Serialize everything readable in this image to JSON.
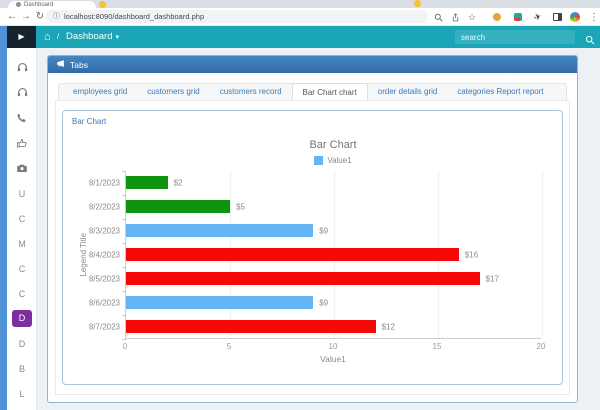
{
  "colors": {
    "navbar_teal": "#1aa6b7",
    "navbar_dark_box": "#15232e",
    "left_stripe_blue": "#4f93d6",
    "panel_header_blue": "#3b76b5",
    "panel_border_blue": "#8fb4da",
    "link_blue": "#3a79b8",
    "active_badge_purple": "#7d2ea0",
    "bar_green": "#0d930d",
    "bar_blue": "#64b5f6",
    "bar_red": "#f40808"
  },
  "browser": {
    "tab_title": "Dashboard",
    "url": "localhost:8090/dashboard_dashboard.php",
    "back_glyph": "←",
    "forward_glyph": "→",
    "reload_glyph": "↻",
    "info_glyph": "ⓘ",
    "star_glyph": "☆",
    "plane_glyph": "✈",
    "menu_glyph": "⋮"
  },
  "navbar": {
    "toggle_glyph": "▶",
    "home_glyph": "⌂",
    "breadcrumb_sep": "/",
    "menu_label": "Dashboard",
    "caret_glyph": "▾",
    "search_placeholder": "search"
  },
  "sidebar": {
    "items": [
      {
        "icon": "headset"
      },
      {
        "icon": "headset"
      },
      {
        "icon": "phone"
      },
      {
        "icon": "thumbs-up"
      },
      {
        "icon": "camera"
      },
      {
        "letter": "U"
      },
      {
        "letter": "C"
      },
      {
        "letter": "M"
      },
      {
        "letter": "C"
      },
      {
        "letter": "C"
      },
      {
        "letter": "D",
        "active": true
      },
      {
        "letter": "D"
      },
      {
        "letter": "B"
      },
      {
        "letter": "L"
      }
    ]
  },
  "panel": {
    "title": "Tabs"
  },
  "tabs": {
    "items": [
      {
        "label": "employees grid"
      },
      {
        "label": "customers grid"
      },
      {
        "label": "customers record"
      },
      {
        "label": "Bar Chart chart",
        "active": true
      },
      {
        "label": "order details grid"
      },
      {
        "label": "categories Report report"
      }
    ]
  },
  "chart_panel": {
    "label": "Bar Chart"
  },
  "chart_data": {
    "type": "bar",
    "orientation": "horizontal",
    "title": "Bar Chart",
    "legend": [
      {
        "label": "Value1",
        "color": "#64b5f6"
      }
    ],
    "legend_position": "top",
    "categories": [
      "8/1/2023",
      "8/2/2023",
      "8/3/2023",
      "8/4/2023",
      "8/5/2023",
      "8/6/2023",
      "8/7/2023"
    ],
    "values": [
      2,
      5,
      9,
      16,
      17,
      9,
      12
    ],
    "value_labels": [
      "$2",
      "$5",
      "$9",
      "$16",
      "$17",
      "$9",
      "$12"
    ],
    "bar_colors": [
      "#0d930d",
      "#0d930d",
      "#64b5f6",
      "#f40808",
      "#f40808",
      "#64b5f6",
      "#f40808"
    ],
    "xlabel": "Value1",
    "ylabel": "Legend Title",
    "xlim": [
      0,
      20
    ],
    "xticks": [
      0,
      5,
      10,
      15,
      20
    ],
    "grid": true
  }
}
